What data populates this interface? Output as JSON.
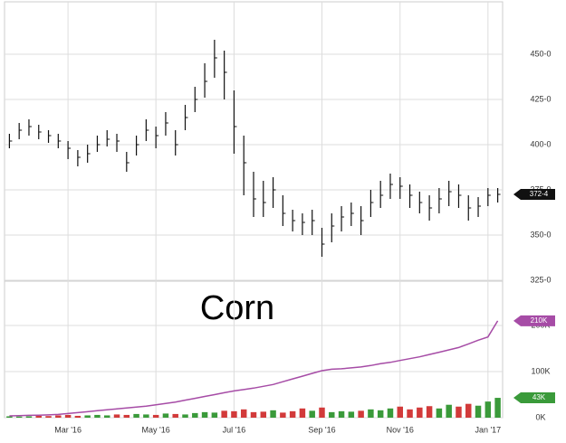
{
  "chart_data": {
    "type": "ohlc",
    "title": "Corn",
    "categories": [
      null,
      null,
      null,
      null,
      null,
      null,
      "Mar '16",
      null,
      null,
      null,
      null,
      null,
      null,
      null,
      null,
      "May '16",
      null,
      null,
      null,
      null,
      null,
      null,
      null,
      "Jul '16",
      null,
      null,
      null,
      null,
      null,
      null,
      null,
      null,
      "Sep '16",
      null,
      null,
      null,
      null,
      null,
      null,
      null,
      "Nov '16",
      null,
      null,
      null,
      null,
      null,
      null,
      null,
      null,
      "Jan '17",
      null
    ],
    "price": {
      "color": "#111111",
      "ylim": [
        325,
        477.5
      ],
      "yticks": [
        {
          "value": 325,
          "label": "325-0"
        },
        {
          "value": 350,
          "label": "350-0"
        },
        {
          "value": 375,
          "label": "375-0"
        },
        {
          "value": 400,
          "label": "400-0"
        },
        {
          "value": 425,
          "label": "425-0"
        },
        {
          "value": 450,
          "label": "450-0"
        }
      ],
      "last": {
        "value": 372.5,
        "label": "372-4"
      },
      "high": [
        406,
        412,
        414,
        411,
        408,
        406,
        402,
        397,
        400,
        405,
        408,
        406,
        396,
        405,
        414,
        410,
        418,
        408,
        422,
        432,
        445,
        458,
        452,
        430,
        405,
        385,
        380,
        382,
        372,
        364,
        362,
        364,
        354,
        362,
        366,
        368,
        366,
        375,
        380,
        384,
        382,
        378,
        374,
        372,
        376,
        380,
        378,
        372,
        371,
        376,
        376
      ],
      "low": [
        398,
        403,
        405,
        403,
        401,
        398,
        392,
        388,
        390,
        396,
        399,
        396,
        385,
        394,
        402,
        398,
        405,
        394,
        408,
        418,
        426,
        437,
        425,
        395,
        372,
        360,
        360,
        365,
        355,
        352,
        350,
        350,
        338,
        346,
        352,
        355,
        350,
        360,
        365,
        370,
        370,
        365,
        362,
        358,
        362,
        366,
        365,
        358,
        360,
        366,
        368
      ],
      "close": [
        402,
        408,
        410,
        407,
        405,
        402,
        398,
        393,
        395,
        400,
        403,
        402,
        390,
        400,
        408,
        405,
        412,
        400,
        415,
        425,
        435,
        448,
        440,
        410,
        390,
        370,
        368,
        375,
        362,
        358,
        357,
        358,
        345,
        355,
        360,
        362,
        358,
        368,
        372,
        378,
        377,
        372,
        368,
        365,
        370,
        374,
        372,
        365,
        366,
        372,
        372.5
      ]
    },
    "volume": {
      "up_color": "#3a9a3a",
      "down_color": "#d23a3a",
      "ylim": [
        0,
        294000
      ],
      "yticks": [
        {
          "value": 0,
          "label": "0K"
        },
        {
          "value": 100000,
          "label": "100K"
        },
        {
          "value": 200000,
          "label": "200K"
        }
      ],
      "last": {
        "value": 43000,
        "label": "43K"
      },
      "values": [
        3000,
        2500,
        3000,
        4000,
        3500,
        5000,
        6000,
        4000,
        5000,
        6000,
        5000,
        7000,
        6000,
        8000,
        7000,
        6000,
        9000,
        8000,
        7000,
        10000,
        12000,
        11000,
        15000,
        14000,
        18000,
        12000,
        13000,
        16000,
        11000,
        14000,
        20000,
        15000,
        22000,
        12000,
        14000,
        13000,
        15000,
        18000,
        16000,
        20000,
        24000,
        18000,
        22000,
        25000,
        20000,
        28000,
        24000,
        30000,
        26000,
        35000,
        43000
      ]
    },
    "open_interest": {
      "color": "#a64ca6",
      "last": {
        "value": 210000,
        "label": "210K"
      },
      "values": [
        4000,
        4500,
        5000,
        5500,
        6000,
        7000,
        9000,
        11000,
        13000,
        15000,
        17000,
        19000,
        21000,
        23000,
        25000,
        28000,
        31000,
        34000,
        38000,
        42000,
        46000,
        50000,
        54000,
        58000,
        61000,
        64000,
        68000,
        72000,
        78000,
        84000,
        90000,
        96000,
        102000,
        105000,
        106000,
        108000,
        110000,
        113000,
        117000,
        120000,
        124000,
        128000,
        132000,
        137000,
        142000,
        147000,
        152000,
        160000,
        168000,
        175000,
        210000
      ]
    }
  }
}
